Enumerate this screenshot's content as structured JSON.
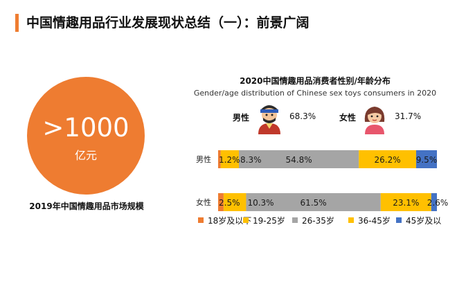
{
  "page": {
    "title": "中国情趣用品行业发展现状总结（一）：前景广阔"
  },
  "market": {
    "value": ">1000",
    "unit": "亿元",
    "caption": "2019年中国情趣用品市场规模"
  },
  "colors": {
    "accent": "#ef7d31",
    "segments": [
      "#ee7c31",
      "#ffc000",
      "#a5a5a5",
      "#ffc000",
      "#4472c4"
    ]
  },
  "gender_summary": {
    "male_label": "男性",
    "male_pct": "68.3%",
    "female_label": "女性",
    "female_pct": "31.7%",
    "male_icon": "man-avatar-icon",
    "female_icon": "woman-avatar-icon"
  },
  "chart_data": {
    "type": "bar",
    "orientation": "horizontal-stacked-100",
    "title": "2020中国情趣用品消费者性别/年龄分布",
    "subtitle": "Gender/age distribution of Chinese sex toys consumers in 2020",
    "categories": [
      "男性",
      "女性"
    ],
    "series": [
      {
        "name": "18岁及以下",
        "values": [
          1.2,
          2.5
        ],
        "labels": [
          "1.2%",
          "2.5%"
        ]
      },
      {
        "name": "19-25岁",
        "values": [
          8.3,
          10.3
        ],
        "labels": [
          "8.3%",
          "10.3%"
        ]
      },
      {
        "name": "26-35岁",
        "values": [
          54.8,
          61.5
        ],
        "labels": [
          "54.8%",
          "61.5%"
        ]
      },
      {
        "name": "36-45岁",
        "values": [
          26.2,
          23.1
        ],
        "labels": [
          "26.2%",
          "23.1%"
        ]
      },
      {
        "name": "45岁及以上",
        "values": [
          9.5,
          2.6
        ],
        "labels": [
          "9.5%",
          "2.6%"
        ]
      }
    ],
    "xlim": [
      0,
      100
    ],
    "legend_position": "bottom",
    "legend_labels": [
      "18岁及以下",
      "19-25岁",
      "26-35岁",
      "36-45岁",
      "45岁及以"
    ]
  }
}
